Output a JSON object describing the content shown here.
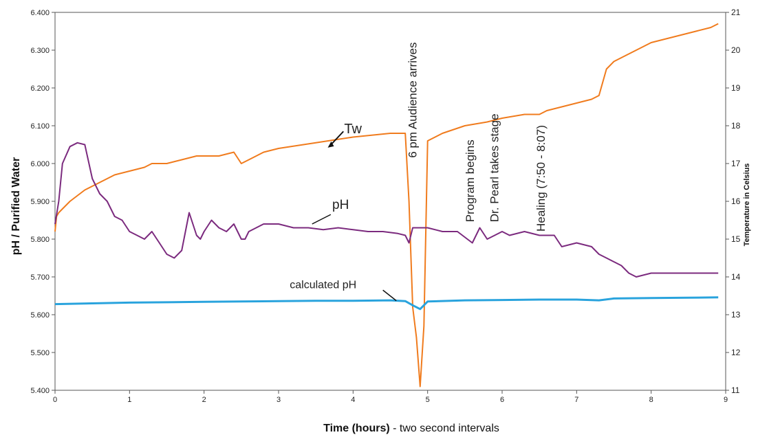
{
  "chart_data": {
    "type": "line",
    "xlabel_bold": "Time (hours)",
    "xlabel_rest": " - two second intervals",
    "ylabel": "pH / Purified Water",
    "y2label": "Temperature in Celsius",
    "xlim": [
      0,
      9
    ],
    "ylim": [
      5.4,
      6.4
    ],
    "y2lim": [
      11,
      21
    ],
    "x_ticks": [
      "0",
      "1",
      "2",
      "3",
      "4",
      "5",
      "6",
      "7",
      "8",
      "9"
    ],
    "y_ticks": [
      "5.400",
      "5.500",
      "5.600",
      "5.700",
      "5.800",
      "5.900",
      "6.000",
      "6.100",
      "6.200",
      "6.300",
      "6.400"
    ],
    "y2_ticks": [
      "11",
      "12",
      "13",
      "14",
      "15",
      "16",
      "17",
      "18",
      "19",
      "20",
      "21"
    ],
    "grid": false,
    "series": [
      {
        "name": "pH",
        "axis": "left",
        "color": "#7b2a7e",
        "x": [
          0,
          0.05,
          0.1,
          0.2,
          0.3,
          0.4,
          0.5,
          0.6,
          0.7,
          0.8,
          0.9,
          1.0,
          1.1,
          1.2,
          1.3,
          1.4,
          1.5,
          1.6,
          1.7,
          1.75,
          1.8,
          1.85,
          1.9,
          1.95,
          2.0,
          2.1,
          2.2,
          2.3,
          2.4,
          2.5,
          2.55,
          2.6,
          2.7,
          2.8,
          3.0,
          3.2,
          3.4,
          3.6,
          3.8,
          4.0,
          4.2,
          4.4,
          4.6,
          4.7,
          4.75,
          4.8,
          4.9,
          5.0,
          5.2,
          5.4,
          5.6,
          5.7,
          5.8,
          5.9,
          6.0,
          6.1,
          6.3,
          6.5,
          6.7,
          6.8,
          7.0,
          7.2,
          7.3,
          7.4,
          7.6,
          7.7,
          7.8,
          8.0,
          8.2,
          8.4,
          8.6,
          8.8,
          8.9
        ],
        "y": [
          5.84,
          5.9,
          6.0,
          6.045,
          6.055,
          6.05,
          5.96,
          5.92,
          5.9,
          5.86,
          5.85,
          5.82,
          5.81,
          5.8,
          5.82,
          5.79,
          5.76,
          5.75,
          5.77,
          5.82,
          5.87,
          5.84,
          5.81,
          5.8,
          5.82,
          5.85,
          5.83,
          5.82,
          5.84,
          5.8,
          5.8,
          5.82,
          5.83,
          5.84,
          5.84,
          5.83,
          5.83,
          5.825,
          5.83,
          5.825,
          5.82,
          5.82,
          5.815,
          5.81,
          5.79,
          5.83,
          5.83,
          5.83,
          5.82,
          5.82,
          5.79,
          5.83,
          5.8,
          5.81,
          5.82,
          5.81,
          5.82,
          5.81,
          5.81,
          5.78,
          5.79,
          5.78,
          5.76,
          5.75,
          5.73,
          5.71,
          5.7,
          5.71,
          5.71,
          5.71,
          5.71,
          5.71,
          5.71
        ]
      },
      {
        "name": "calculated pH",
        "axis": "left",
        "color": "#29a3dd",
        "x": [
          0,
          0.5,
          1.0,
          1.5,
          2.0,
          2.5,
          3.0,
          3.5,
          4.0,
          4.5,
          4.7,
          4.8,
          4.9,
          5.0,
          5.5,
          6.0,
          6.5,
          7.0,
          7.3,
          7.5,
          8.0,
          8.5,
          8.9
        ],
        "y": [
          5.628,
          5.63,
          5.632,
          5.633,
          5.634,
          5.635,
          5.636,
          5.637,
          5.637,
          5.638,
          5.636,
          5.625,
          5.615,
          5.635,
          5.638,
          5.639,
          5.64,
          5.64,
          5.638,
          5.643,
          5.644,
          5.645,
          5.646
        ]
      },
      {
        "name": "Tw",
        "axis": "right",
        "color": "#f07b1d",
        "x": [
          0,
          0.02,
          0.05,
          0.1,
          0.2,
          0.4,
          0.6,
          0.8,
          1.0,
          1.2,
          1.3,
          1.5,
          1.7,
          1.9,
          2.0,
          2.2,
          2.4,
          2.5,
          2.6,
          2.7,
          2.8,
          3.0,
          3.5,
          4.0,
          4.5,
          4.7,
          4.75,
          4.8,
          4.85,
          4.9,
          4.95,
          5.0,
          5.2,
          5.5,
          5.8,
          6.0,
          6.3,
          6.5,
          6.6,
          6.8,
          7.0,
          7.2,
          7.3,
          7.4,
          7.5,
          7.6,
          7.8,
          8.0,
          8.2,
          8.4,
          8.6,
          8.8,
          8.9
        ],
        "y": [
          15.2,
          15.6,
          15.7,
          15.8,
          16.0,
          16.3,
          16.5,
          16.7,
          16.8,
          16.9,
          17.0,
          17.0,
          17.1,
          17.2,
          17.2,
          17.2,
          17.3,
          17.0,
          17.1,
          17.2,
          17.3,
          17.4,
          17.55,
          17.7,
          17.8,
          17.8,
          16.0,
          13.2,
          12.4,
          11.1,
          12.7,
          17.6,
          17.8,
          18.0,
          18.1,
          18.2,
          18.3,
          18.3,
          18.4,
          18.5,
          18.6,
          18.7,
          18.8,
          19.5,
          19.7,
          19.8,
          20.0,
          20.2,
          20.3,
          20.4,
          20.5,
          20.6,
          20.7
        ]
      }
    ],
    "annotations": [
      "Tw",
      "pH",
      "calculated pH",
      "6 pm Audience arrives",
      "Program begins",
      "Dr. Pearl takes stage",
      "Healing (7:50 - 8:07)"
    ]
  }
}
